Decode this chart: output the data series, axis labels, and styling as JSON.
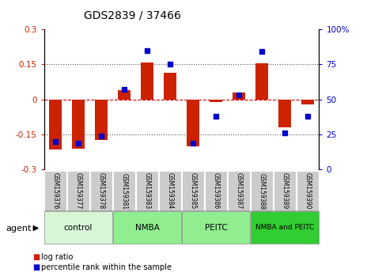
{
  "title": "GDS2839 / 37466",
  "samples": [
    "GSM159376",
    "GSM159377",
    "GSM159378",
    "GSM159381",
    "GSM159383",
    "GSM159384",
    "GSM159385",
    "GSM159386",
    "GSM159387",
    "GSM159388",
    "GSM159389",
    "GSM159390"
  ],
  "log_ratio": [
    -0.215,
    -0.21,
    -0.175,
    0.04,
    0.158,
    0.115,
    -0.2,
    -0.01,
    0.03,
    0.155,
    -0.12,
    -0.02
  ],
  "pct_rank": [
    20,
    19,
    24,
    57,
    85,
    75,
    19,
    38,
    53,
    84,
    26,
    38
  ],
  "groups": [
    {
      "label": "control",
      "start": 0,
      "end": 3,
      "color": "#d8f5d8"
    },
    {
      "label": "NMBA",
      "start": 3,
      "end": 6,
      "color": "#90ee90"
    },
    {
      "label": "PEITC",
      "start": 6,
      "end": 9,
      "color": "#90ee90"
    },
    {
      "label": "NMBA and PEITC",
      "start": 9,
      "end": 12,
      "color": "#32cd32"
    }
  ],
  "bar_color": "#cc2200",
  "dot_color": "#0000cc",
  "ylim": [
    -0.3,
    0.3
  ],
  "yticks_left": [
    -0.3,
    -0.15,
    0,
    0.15,
    0.3
  ],
  "yticks_right": [
    0,
    25,
    50,
    75,
    100
  ],
  "hline_color": "#cc0000",
  "dotted_color": "#555555"
}
